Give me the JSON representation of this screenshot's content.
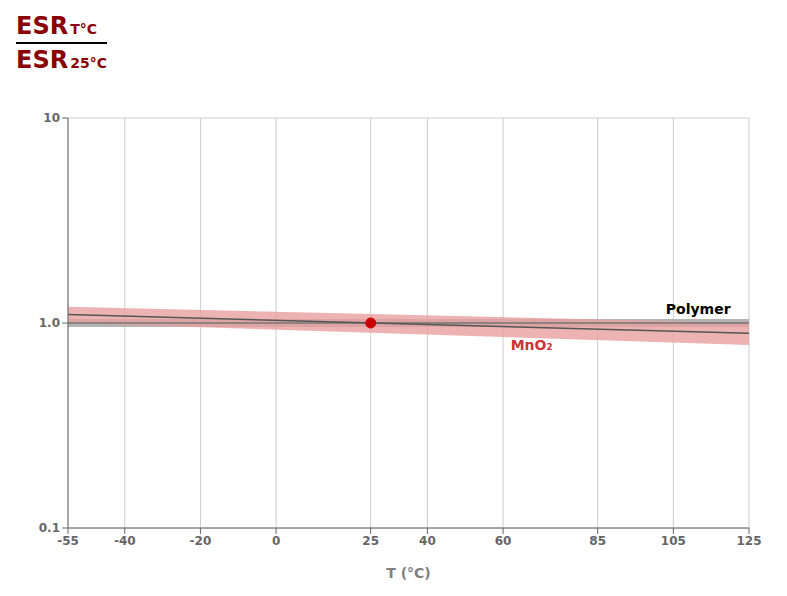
{
  "chart_data": {
    "type": "area",
    "log": "y",
    "xlim": [
      -55,
      125
    ],
    "ylim": [
      0.1,
      10
    ],
    "xticks": [
      -55,
      -40,
      -20,
      0,
      25,
      40,
      60,
      85,
      105,
      125
    ],
    "yticks": [
      0.1,
      {
        "value": 1.0,
        "label": "1.0"
      },
      10
    ],
    "xlabel": "T (°C)",
    "ylabel": {
      "numerator": [
        "ESR",
        "T°C"
      ],
      "denominator": [
        "ESR",
        "25°C"
      ],
      "color": "#8b0000"
    },
    "grid": true,
    "series": [
      {
        "type": "band",
        "color": "#a0a0a0",
        "x": [
          -55,
          125
        ],
        "lower": [
          0.955,
          0.955
        ],
        "upper": [
          1.045,
          1.045
        ]
      },
      {
        "type": "line",
        "color": "#777777",
        "x": [
          -55,
          125
        ],
        "values": [
          1.0,
          1.0
        ]
      },
      {
        "type": "band",
        "color": "#e8a0a0",
        "x": [
          -55,
          125
        ],
        "lower": [
          1.0,
          0.78
        ],
        "upper": [
          1.2,
          1.0
        ]
      },
      {
        "type": "line",
        "color": "#555555",
        "x": [
          -55,
          125
        ],
        "values": [
          1.1,
          0.89
        ]
      },
      {
        "type": "scatter",
        "color": "#cc0000",
        "marker": "circle",
        "x": [
          25
        ],
        "values": [
          1.0
        ]
      }
    ],
    "annotations": [
      {
        "text": "Polymer",
        "x": 103,
        "y": 1.07,
        "color": "#000000"
      },
      {
        "text": "MnO₂",
        "x": 62,
        "y": 0.855,
        "color": "#cc3333"
      }
    ]
  }
}
